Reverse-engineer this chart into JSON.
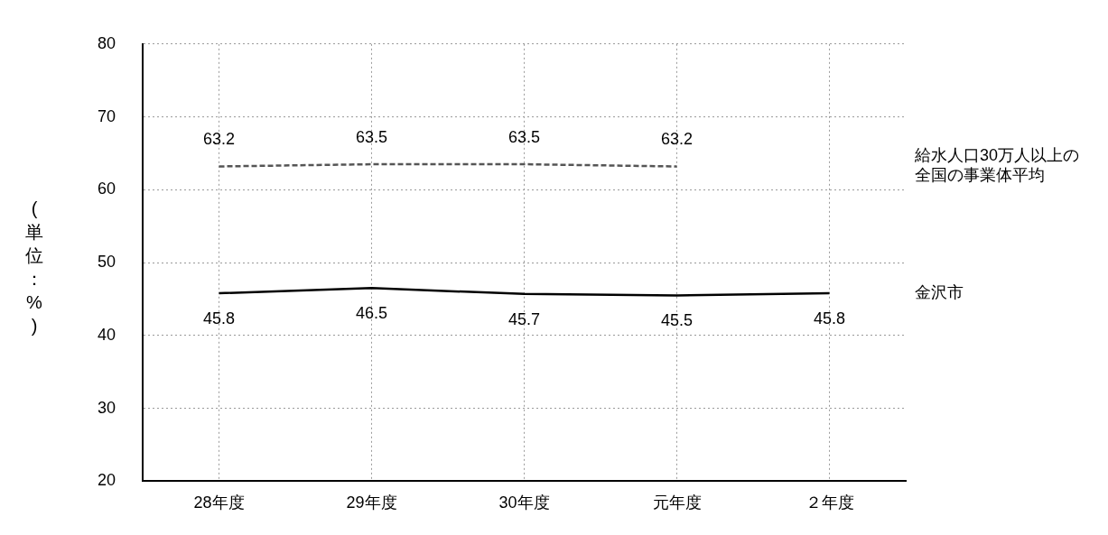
{
  "chart_data": {
    "type": "line",
    "ylabel": "(単位：%)",
    "categories": [
      "28年度",
      "29年度",
      "30年度",
      "元年度",
      "２年度"
    ],
    "series": [
      {
        "name": "給水人口30万人以上の全国の事業体平均",
        "color": "#555555",
        "line_style": "dashed",
        "values": [
          63.2,
          63.5,
          63.5,
          63.2,
          null
        ]
      },
      {
        "name": "金沢市",
        "color": "#000000",
        "line_style": "solid",
        "values": [
          45.8,
          46.5,
          45.7,
          45.5,
          45.8
        ]
      }
    ],
    "ylim": [
      20,
      80
    ],
    "yticks": [
      20,
      30,
      40,
      50,
      60,
      70,
      80
    ],
    "grid": true,
    "legend": false,
    "marker": "none",
    "data_labels": true
  }
}
